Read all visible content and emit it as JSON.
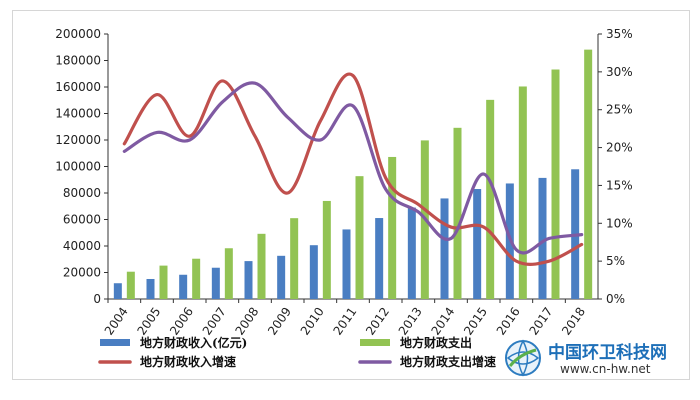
{
  "chart_data": {
    "type": "bar",
    "categories": [
      "2004",
      "2005",
      "2006",
      "2007",
      "2008",
      "2009",
      "2010",
      "2011",
      "2012",
      "2013",
      "2014",
      "2015",
      "2016",
      "2017",
      "2018"
    ],
    "series": [
      {
        "name": "地方财政收入(亿元)",
        "kind": "bar",
        "axis": "left",
        "color": "#4a7ec2",
        "values": [
          11900,
          15100,
          18300,
          23600,
          28600,
          32600,
          40600,
          52500,
          61100,
          69000,
          75900,
          83000,
          87200,
          91400,
          97900
        ]
      },
      {
        "name": "地方财政支出",
        "kind": "bar",
        "axis": "left",
        "color": "#92c353",
        "values": [
          20600,
          25200,
          30400,
          38300,
          49200,
          61000,
          74000,
          92700,
          107200,
          119700,
          129200,
          150300,
          160400,
          173200,
          188200
        ]
      },
      {
        "name": "地方财政收入增速",
        "kind": "line",
        "axis": "right",
        "color": "#c0504d",
        "values": [
          20.5,
          27.0,
          21.5,
          28.8,
          21.5,
          14.0,
          23.5,
          29.5,
          16.0,
          12.5,
          9.5,
          9.5,
          5.0,
          5.0,
          7.2
        ]
      },
      {
        "name": "地方财政支出增速",
        "kind": "line",
        "axis": "right",
        "color": "#7f5aa2",
        "values": [
          19.5,
          22.0,
          21.0,
          26.0,
          28.5,
          24.0,
          21.0,
          25.5,
          14.5,
          11.5,
          8.0,
          16.5,
          6.5,
          8.0,
          8.5
        ]
      }
    ],
    "y_left": {
      "ticks": [
        "0",
        "20000",
        "40000",
        "60000",
        "80000",
        "100000",
        "120000",
        "140000",
        "160000",
        "180000",
        "200000"
      ],
      "range": [
        0,
        200000
      ]
    },
    "y_right": {
      "ticks": [
        "0%",
        "5%",
        "10%",
        "15%",
        "20%",
        "25%",
        "30%",
        "35%"
      ],
      "range": [
        0,
        35
      ]
    },
    "legend": [
      {
        "label": "地方财政收入(亿元)",
        "marker": "bar",
        "color": "#4a7ec2"
      },
      {
        "label": "地方财政支出",
        "marker": "bar",
        "color": "#92c353"
      },
      {
        "label": "地方财政收入增速",
        "marker": "line",
        "color": "#c0504d"
      },
      {
        "label": "地方财政支出增速",
        "marker": "line",
        "color": "#7f5aa2"
      }
    ],
    "legend_placement": "bottom",
    "grid": false
  },
  "watermark": {
    "title": "中国环卫科技网",
    "url": "www.cn-hw.net"
  }
}
